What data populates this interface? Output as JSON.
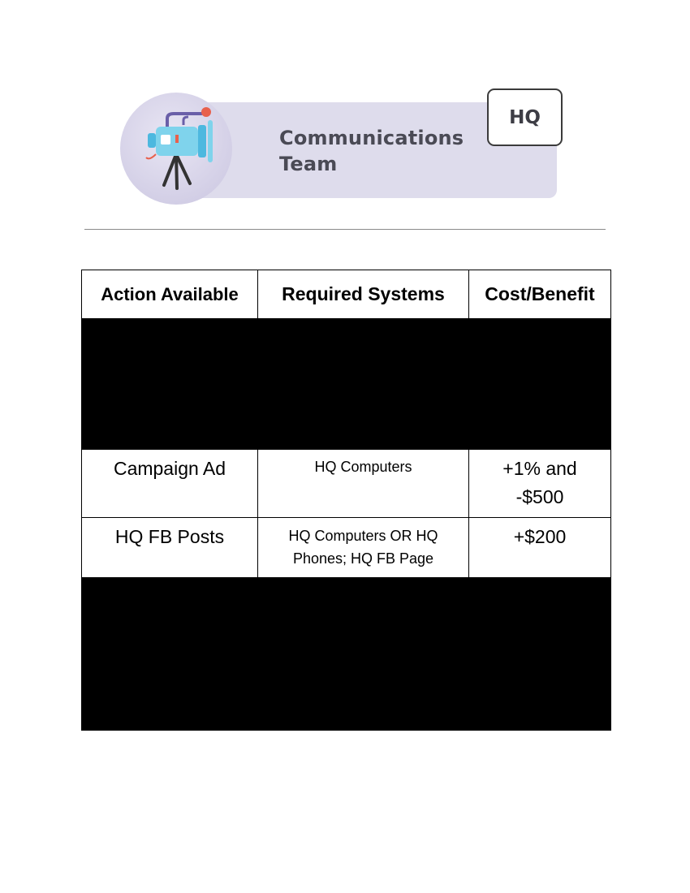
{
  "banner": {
    "title_line1": "Communications",
    "title_line2": "Team",
    "badge": "HQ",
    "icon": "video-camera-icon",
    "colors": {
      "bar": "#dedcec",
      "camera_body": "#7fd3ec",
      "accent": "#e8604c",
      "tripod": "#333333"
    }
  },
  "table": {
    "headers": [
      "Action Available",
      "Required Systems",
      "Cost/Benefit"
    ],
    "rows": [
      {
        "redacted": true
      },
      {
        "action": "Campaign Ad",
        "systems": "HQ Computers",
        "cost_line1": "+1% and",
        "cost_line2": "-$500"
      },
      {
        "action": "HQ FB Posts",
        "systems_line1": "HQ Computers OR HQ",
        "systems_line2": "Phones; HQ FB Page",
        "cost": "+$200"
      },
      {
        "redacted": true
      }
    ]
  }
}
